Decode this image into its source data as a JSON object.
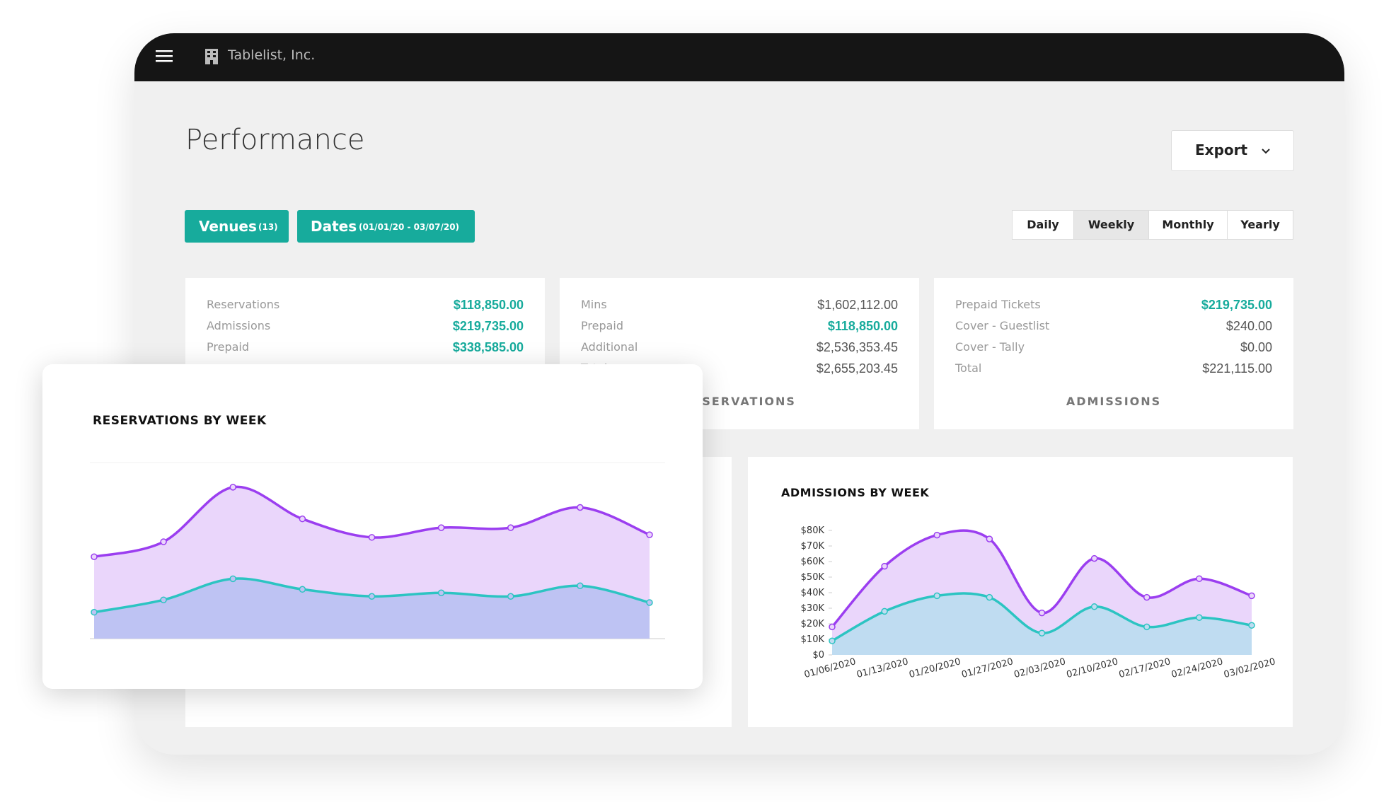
{
  "header": {
    "company": "Tablelist, Inc."
  },
  "page": {
    "title": "Performance",
    "export": "Export"
  },
  "filters": {
    "venues": {
      "label": "Venues",
      "count": "(13)"
    },
    "dates": {
      "label": "Dates",
      "range": "(01/01/20 - 03/07/20)"
    }
  },
  "periods": {
    "options": [
      "Daily",
      "Weekly",
      "Monthly",
      "Yearly"
    ],
    "selected": 1
  },
  "stat_cards": [
    {
      "title": null,
      "rows": [
        {
          "label": "Reservations",
          "value": "$118,850.00",
          "highlight": true
        },
        {
          "label": "Admissions",
          "value": "$219,735.00",
          "highlight": true
        },
        {
          "label": "Prepaid",
          "value": "$338,585.00",
          "highlight": true
        }
      ]
    },
    {
      "title": "RESERVATIONS",
      "rows": [
        {
          "label": "Mins",
          "value": "$1,602,112.00",
          "highlight": false
        },
        {
          "label": "Prepaid",
          "value": "$118,850.00",
          "highlight": true
        },
        {
          "label": "Additional",
          "value": "$2,536,353.45",
          "highlight": false
        },
        {
          "label": "Total",
          "value": "$2,655,203.45",
          "highlight": false
        }
      ]
    },
    {
      "title": "ADMISSIONS",
      "rows": [
        {
          "label": "Prepaid Tickets",
          "value": "$219,735.00",
          "highlight": true
        },
        {
          "label": "Cover - Guestlist",
          "value": "$240.00",
          "highlight": false
        },
        {
          "label": "Cover - Tally",
          "value": "$0.00",
          "highlight": false
        },
        {
          "label": "Total",
          "value": "$221,115.00",
          "highlight": false
        }
      ]
    }
  ],
  "chart_data": [
    {
      "type": "area",
      "title": "RESERVATIONS BY WEEK",
      "categories": [
        null,
        null,
        null,
        null,
        null,
        null,
        null,
        null,
        null
      ],
      "ylim": [
        0,
        100
      ],
      "grid": true,
      "series": [
        {
          "name": null,
          "color": "#9b3ef0",
          "area_color": "#ead6fb",
          "values": [
            46.5,
            55,
            86,
            68,
            57.5,
            63,
            63,
            74.5,
            59
          ]
        },
        {
          "name": null,
          "color": "#2cc4c2",
          "area_color": "#bec3f3",
          "values": [
            15,
            22,
            34,
            28,
            24,
            26,
            24,
            30,
            20.5
          ]
        }
      ]
    },
    {
      "type": "area",
      "title": "ADMISSIONS BY WEEK",
      "categories": [
        "01/06/2020",
        "01/13/2020",
        "01/20/2020",
        "01/27/2020",
        "02/03/2020",
        "02/10/2020",
        "02/17/2020",
        "02/24/2020",
        "03/02/2020"
      ],
      "ylim": [
        0,
        80000
      ],
      "yticks": [
        {
          "value": 0,
          "label": "$0"
        },
        {
          "value": 10000,
          "label": "$10K"
        },
        {
          "value": 20000,
          "label": "$20K"
        },
        {
          "value": 30000,
          "label": "$30K"
        },
        {
          "value": 40000,
          "label": "$40K"
        },
        {
          "value": 50000,
          "label": "$50K"
        },
        {
          "value": 60000,
          "label": "$60K"
        },
        {
          "value": 70000,
          "label": "$70K"
        },
        {
          "value": 80000,
          "label": "$80K"
        }
      ],
      "grid": false,
      "series": [
        {
          "name": null,
          "color": "#9b3ef0",
          "area_color": "#ead6fb",
          "values": [
            18000,
            57000,
            77000,
            74500,
            27000,
            62000,
            37000,
            49000,
            38000
          ]
        },
        {
          "name": null,
          "color": "#2cc4c2",
          "area_color": "#bfdcf1",
          "values": [
            9000,
            28000,
            38000,
            37000,
            14000,
            31000,
            18000,
            24000,
            19000
          ]
        }
      ]
    }
  ]
}
